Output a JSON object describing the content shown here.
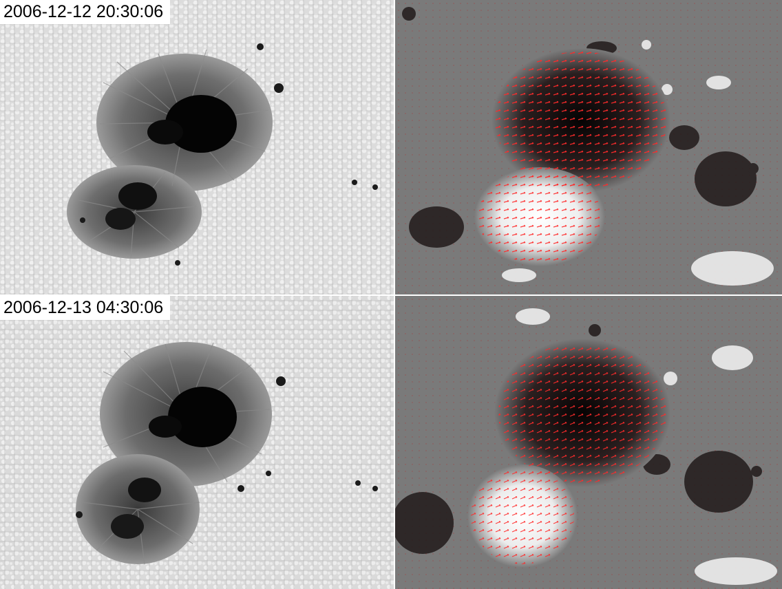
{
  "figure": {
    "rows": [
      {
        "timestamp": "2006-12-12 20:30:06"
      },
      {
        "timestamp": "2006-12-13 04:30:06"
      }
    ],
    "colors": {
      "photosphere": "#d9d9d9",
      "magnetogram_background": "#7a7a7a",
      "umbra": "#050505",
      "penumbra": "#6a6a6a",
      "positive_polarity": "#ffffff",
      "negative_polarity": "#151010",
      "vector_arrows": "#ff2020"
    },
    "panels": [
      {
        "id": "continuum-1",
        "kind": "continuum intensity image"
      },
      {
        "id": "magnetogram-1",
        "kind": "vector magnetogram with red transverse-field arrows"
      },
      {
        "id": "continuum-2",
        "kind": "continuum intensity image"
      },
      {
        "id": "magnetogram-2",
        "kind": "vector magnetogram with red transverse-field arrows"
      }
    ]
  }
}
